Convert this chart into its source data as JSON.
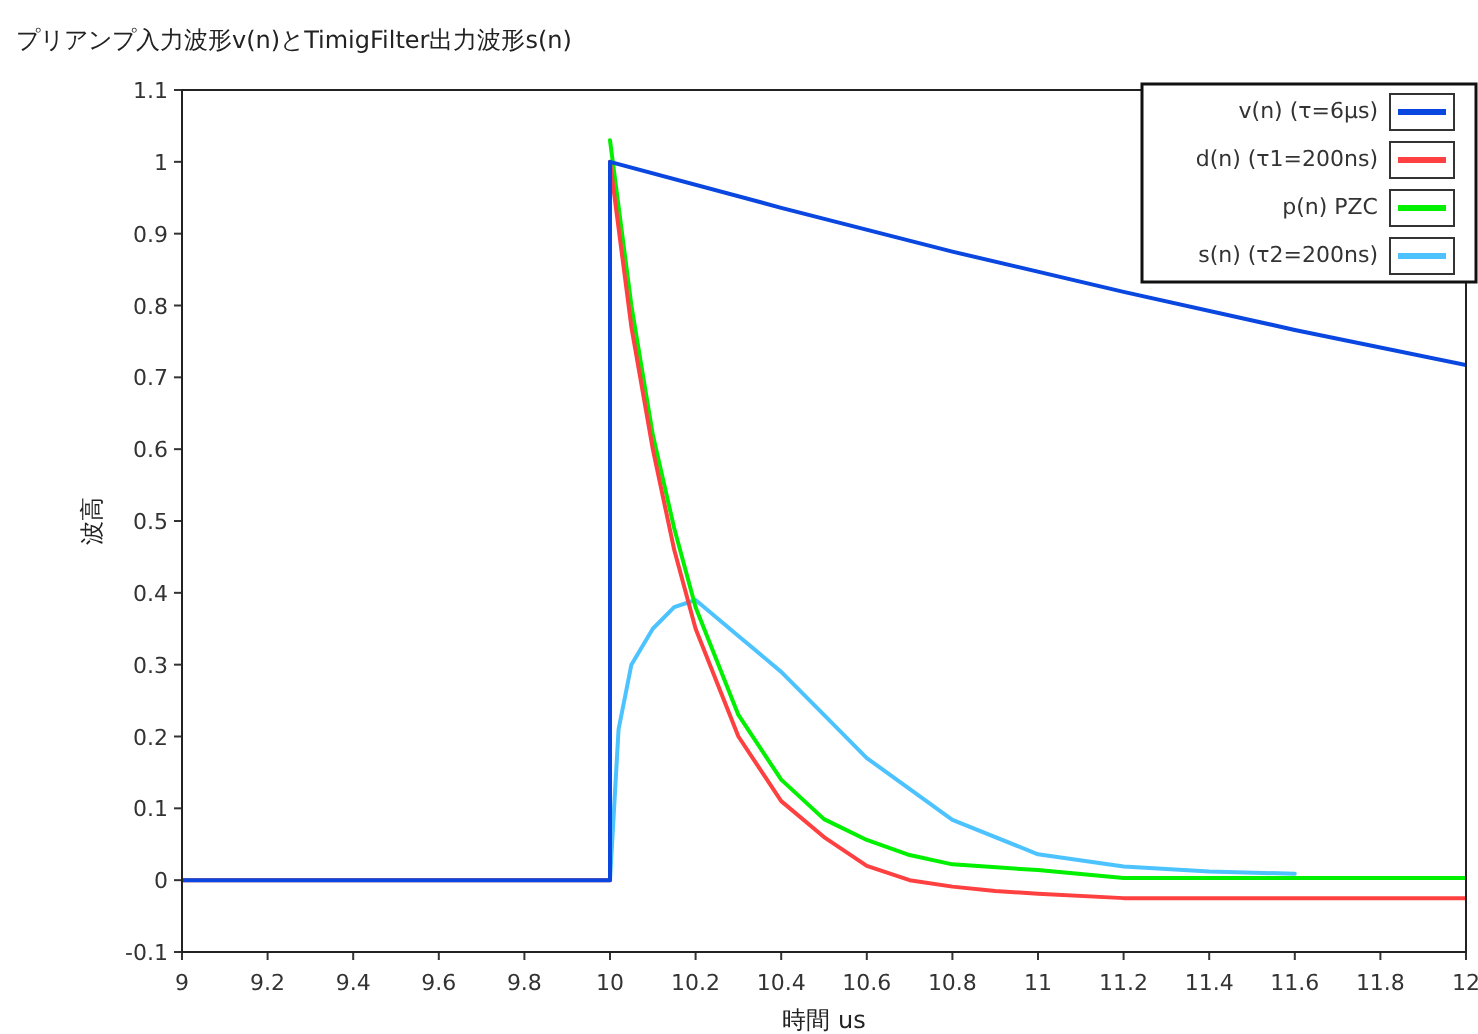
{
  "chart_data": {
    "type": "line",
    "title": "プリアンプ入力波形v(n)とTimigFilter出力波形s(n)",
    "xlabel": "時間 us",
    "ylabel": "波高",
    "xlim": [
      9,
      12
    ],
    "xticks": [
      9,
      {
        "value": 9.2,
        "label": "9.2"
      },
      {
        "value": 9.4,
        "label": "9.4"
      },
      {
        "value": 9.6,
        "label": "9.6"
      },
      {
        "value": 9.8,
        "label": "9.8"
      },
      10,
      {
        "value": 10.2,
        "label": "10.2"
      },
      {
        "value": 10.4,
        "label": "10.4"
      },
      {
        "value": 10.6,
        "label": "10.6"
      },
      {
        "value": 10.8,
        "label": "10.8"
      },
      11,
      {
        "value": 11.2,
        "label": "11.2"
      },
      {
        "value": 11.4,
        "label": "11.4"
      },
      {
        "value": 11.6,
        "label": "11.6"
      },
      {
        "value": 11.8,
        "label": "11.8"
      },
      12
    ],
    "ylim": [
      -0.1,
      1.1
    ],
    "yticks": [
      -0.1,
      0,
      0.1,
      0.2,
      0.3,
      0.4,
      0.5,
      0.6,
      0.7,
      0.8,
      0.9,
      1,
      1.1
    ],
    "grid": false,
    "legend": "top right",
    "marker": "none",
    "line_style": "solid",
    "series": [
      {
        "name": "v(n)  (τ=6μs)",
        "color": "#0a47e0",
        "x": [
          9,
          10,
          10,
          10.4,
          10.8,
          11.2,
          11.6,
          12
        ],
        "values": [
          0,
          0,
          1,
          0.936,
          0.875,
          0.819,
          0.766,
          0.717
        ]
      },
      {
        "name": "d(n) (τ1=200ns)",
        "color": "#ff4040",
        "x": [
          9,
          10,
          10,
          10.05,
          10.1,
          10.15,
          10.2,
          10.3,
          10.4,
          10.5,
          10.6,
          10.7,
          10.8,
          10.9,
          11,
          11.2,
          12
        ],
        "values": [
          0,
          0,
          1.0,
          0.77,
          0.6,
          0.46,
          0.35,
          0.2,
          0.11,
          0.06,
          0.02,
          0.0,
          -0.009,
          -0.015,
          -0.019,
          -0.025,
          -0.025
        ]
      },
      {
        "name": "p(n) PZC",
        "color": "#00f000",
        "x": [
          10,
          10.05,
          10.1,
          10.15,
          10.2,
          10.3,
          10.4,
          10.5,
          10.6,
          10.7,
          10.8,
          11,
          11.2,
          12
        ],
        "values": [
          1.03,
          0.8,
          0.62,
          0.49,
          0.38,
          0.23,
          0.14,
          0.085,
          0.056,
          0.035,
          0.022,
          0.014,
          0.003,
          0.003
        ]
      },
      {
        "name": "s(n) (τ2=200ns)",
        "color": "#4cc3ff",
        "x": [
          10,
          10.02,
          10.05,
          10.1,
          10.15,
          10.2,
          10.3,
          10.4,
          10.5,
          10.6,
          10.8,
          11,
          11.2,
          11.4,
          11.6
        ],
        "values": [
          0,
          0.21,
          0.3,
          0.35,
          0.38,
          0.39,
          0.34,
          0.29,
          0.23,
          0.17,
          0.084,
          0.036,
          0.019,
          0.012,
          0.009
        ]
      }
    ]
  }
}
